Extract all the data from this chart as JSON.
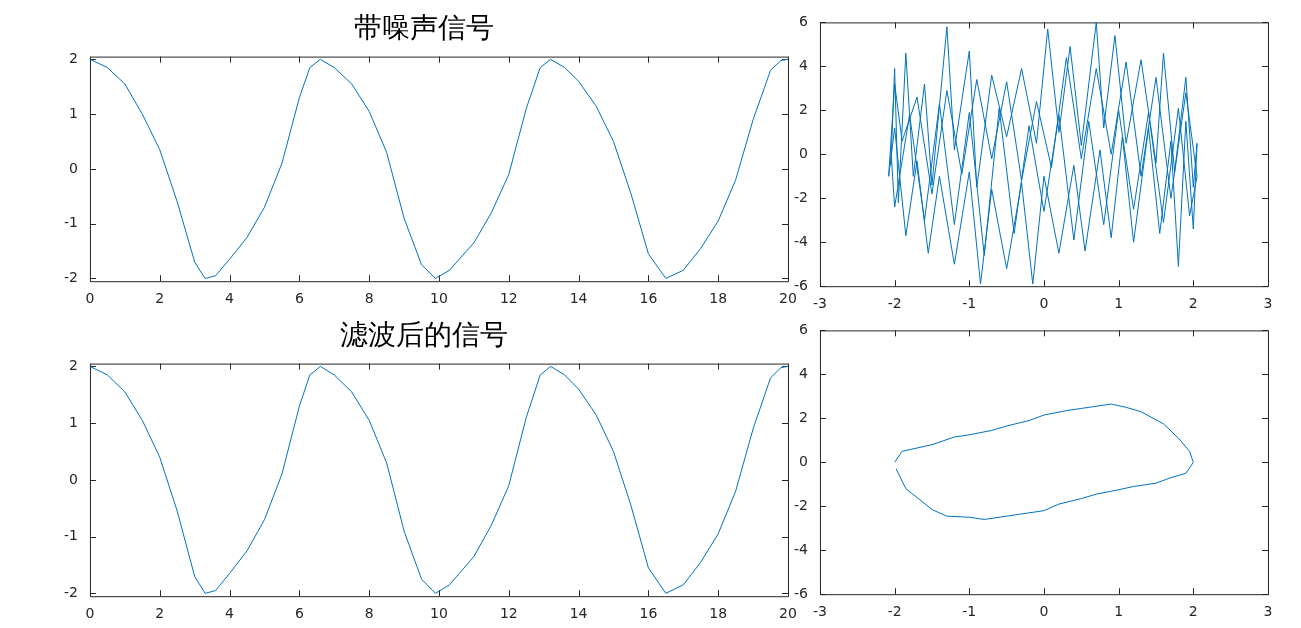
{
  "chart_data": [
    {
      "type": "line",
      "title": "带噪声信号",
      "color": "#0072bd",
      "xlim": [
        0,
        20
      ],
      "xticks": [
        0,
        2,
        4,
        6,
        8,
        10,
        12,
        14,
        16,
        18,
        20
      ],
      "ylim": [
        -2.05,
        2.05
      ],
      "yticks": [
        -2,
        -1,
        0,
        1,
        2
      ],
      "x": [
        0,
        0.5,
        1,
        1.5,
        2,
        2.5,
        3,
        3.3,
        3.6,
        4,
        4.5,
        5,
        5.5,
        6,
        6.3,
        6.6,
        7,
        7.5,
        8,
        8.5,
        9,
        9.5,
        9.9,
        10.3,
        11,
        11.5,
        12,
        12.5,
        12.9,
        13.2,
        13.6,
        14,
        14.5,
        15,
        15.5,
        16,
        16.5,
        17,
        17.5,
        18,
        18.5,
        19,
        19.5,
        19.8,
        20
      ],
      "values": [
        2.0,
        1.85,
        1.55,
        1.0,
        0.35,
        -0.6,
        -1.7,
        -2.0,
        -1.95,
        -1.65,
        -1.25,
        -0.7,
        0.1,
        1.3,
        1.85,
        2.0,
        1.85,
        1.55,
        1.05,
        0.3,
        -0.9,
        -1.75,
        -2.0,
        -1.85,
        -1.35,
        -0.8,
        -0.1,
        1.1,
        1.85,
        2.0,
        1.85,
        1.6,
        1.15,
        0.5,
        -0.45,
        -1.55,
        -2.0,
        -1.85,
        -1.45,
        -0.95,
        -0.2,
        0.9,
        1.8,
        1.98,
        2.0
      ]
    },
    {
      "type": "line",
      "color": "#0072bd",
      "xlim": [
        -3,
        3
      ],
      "xticks": [
        -3,
        -2,
        -1,
        0,
        1,
        2,
        3
      ],
      "ylim": [
        -6,
        6
      ],
      "yticks": [
        -6,
        -4,
        -2,
        0,
        2,
        4,
        6
      ],
      "x": [
        -2.05,
        -2.0,
        -1.95,
        -1.85,
        -1.75,
        -1.6,
        -1.5,
        -1.3,
        -1.2,
        -1.0,
        -0.9,
        -0.7,
        -0.5,
        -0.3,
        -0.1,
        0.05,
        0.2,
        0.35,
        0.5,
        0.7,
        0.8,
        0.95,
        1.1,
        1.3,
        1.5,
        1.6,
        1.75,
        1.9,
        2.0,
        2.05,
        2.0,
        1.9,
        1.8,
        1.7,
        1.55,
        1.4,
        1.2,
        1.05,
        0.9,
        0.75,
        0.55,
        0.4,
        0.2,
        0.0,
        -0.15,
        -0.3,
        -0.5,
        -0.7,
        -0.85,
        -1.0,
        -1.2,
        -1.4,
        -1.55,
        -1.7,
        -1.85,
        -2.0,
        -2.08,
        -2.0,
        -1.9,
        -1.7,
        -1.5,
        -1.3,
        -1.1,
        -0.9,
        -0.7,
        -0.5,
        -0.3,
        -0.1,
        0.1,
        0.3,
        0.5,
        0.7,
        0.9,
        1.1,
        1.3,
        1.5,
        1.7,
        1.9,
        2.05,
        1.95,
        1.8,
        1.6,
        1.4,
        1.2,
        1.0,
        0.8,
        0.6,
        0.4,
        0.2,
        0.0,
        -0.2,
        -0.4,
        -0.6,
        -0.8,
        -1.0,
        -1.2,
        -1.4,
        -1.6,
        -1.8,
        -2.0,
        -2.05
      ],
      "values": [
        -0.5,
        3.9,
        -2.2,
        4.6,
        -1.0,
        3.2,
        -1.4,
        5.8,
        0.2,
        4.7,
        -1.5,
        3.6,
        0.8,
        3.9,
        0.5,
        5.7,
        1.0,
        4.9,
        0.4,
        6.0,
        1.2,
        5.4,
        0.5,
        4.3,
        -0.4,
        4.6,
        -0.8,
        3.5,
        -1.5,
        0.5,
        -3.4,
        1.5,
        -5.1,
        0.6,
        -3.6,
        1.2,
        -4.0,
        0.8,
        -3.8,
        0.2,
        -4.4,
        -0.5,
        -4.5,
        -1.0,
        -5.9,
        -1.3,
        -5.2,
        -1.6,
        -5.9,
        -0.8,
        -5.0,
        -1.0,
        -4.5,
        -0.3,
        -3.7,
        1.2,
        -1.0,
        3.2,
        0.6,
        2.6,
        -1.8,
        2.9,
        -0.9,
        3.4,
        -0.2,
        3.3,
        -1.2,
        2.4,
        -0.6,
        4.4,
        -0.2,
        3.9,
        0.0,
        4.2,
        -1.0,
        3.5,
        -2.0,
        2.8,
        -1.0,
        -2.8,
        2.1,
        -3.1,
        1.9,
        -2.5,
        2.0,
        -3.2,
        1.5,
        -3.9,
        1.8,
        -2.6,
        1.3,
        -3.6,
        2.1,
        -4.6,
        1.9,
        -3.2,
        2.3,
        -3.0,
        1.8,
        -2.4,
        0.2
      ]
    },
    {
      "type": "line",
      "title": "滤波后的信号",
      "color": "#0072bd",
      "xlim": [
        0,
        20
      ],
      "xticks": [
        0,
        2,
        4,
        6,
        8,
        10,
        12,
        14,
        16,
        18,
        20
      ],
      "ylim": [
        -2.05,
        2.05
      ],
      "yticks": [
        -2,
        -1,
        0,
        1,
        2
      ],
      "x": [
        0,
        0.5,
        1,
        1.5,
        2,
        2.5,
        3,
        3.3,
        3.6,
        4,
        4.5,
        5,
        5.5,
        6,
        6.3,
        6.6,
        7,
        7.5,
        8,
        8.5,
        9,
        9.5,
        9.9,
        10.3,
        11,
        11.5,
        12,
        12.5,
        12.9,
        13.2,
        13.6,
        14,
        14.5,
        15,
        15.5,
        16,
        16.5,
        17,
        17.5,
        18,
        18.5,
        19,
        19.5,
        19.8,
        20
      ],
      "values": [
        2.0,
        1.85,
        1.55,
        1.05,
        0.4,
        -0.55,
        -1.7,
        -2.0,
        -1.95,
        -1.65,
        -1.25,
        -0.7,
        0.1,
        1.3,
        1.85,
        2.0,
        1.85,
        1.55,
        1.05,
        0.3,
        -0.9,
        -1.75,
        -2.0,
        -1.85,
        -1.35,
        -0.8,
        -0.1,
        1.1,
        1.85,
        2.0,
        1.85,
        1.6,
        1.15,
        0.5,
        -0.45,
        -1.55,
        -2.0,
        -1.85,
        -1.45,
        -0.95,
        -0.2,
        0.9,
        1.8,
        1.98,
        2.0
      ]
    },
    {
      "type": "line",
      "color": "#0072bd",
      "xlim": [
        -3,
        3
      ],
      "xticks": [
        -3,
        -2,
        -1,
        0,
        1,
        2,
        3
      ],
      "ylim": [
        -6,
        6
      ],
      "yticks": [
        -6,
        -4,
        -2,
        0,
        2,
        4,
        6
      ],
      "x": [
        -2.0,
        -1.9,
        -1.7,
        -1.5,
        -1.2,
        -1.0,
        -0.7,
        -0.5,
        -0.2,
        0,
        0.3,
        0.5,
        0.9,
        1.1,
        1.3,
        1.6,
        1.8,
        1.95,
        2.0,
        1.9,
        1.7,
        1.5,
        1.2,
        1.0,
        0.7,
        0.5,
        0.2,
        0,
        -0.3,
        -0.5,
        -0.8,
        -1.0,
        -1.3,
        -1.5,
        -1.7,
        -1.85,
        -1.98
      ],
      "values": [
        0,
        0.5,
        0.65,
        0.8,
        1.15,
        1.25,
        1.45,
        1.65,
        1.9,
        2.15,
        2.35,
        2.45,
        2.65,
        2.5,
        2.3,
        1.75,
        1.1,
        0.5,
        0,
        -0.5,
        -0.7,
        -0.95,
        -1.1,
        -1.25,
        -1.45,
        -1.65,
        -1.9,
        -2.2,
        -2.35,
        -2.45,
        -2.6,
        -2.5,
        -2.45,
        -2.15,
        -1.6,
        -1.2,
        -0.3
      ]
    }
  ]
}
